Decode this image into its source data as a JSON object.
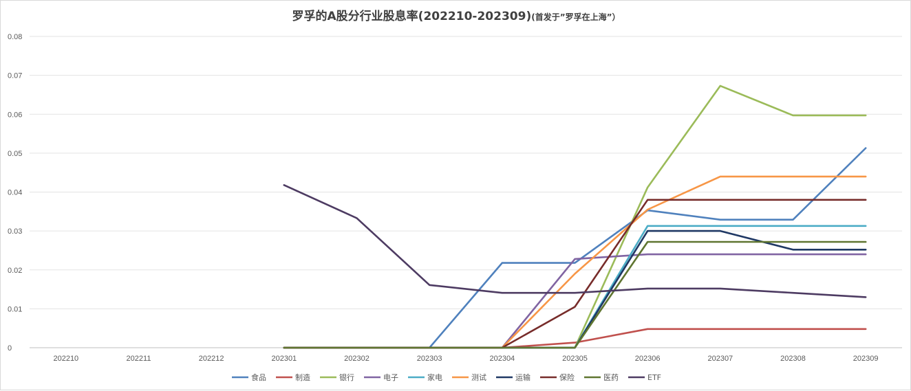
{
  "chart_data": {
    "type": "line",
    "title": "罗孚的A股分行业股息率(202210-202309)",
    "subtitle": "(首发于”罗孚在上海”）",
    "categories": [
      "202210",
      "202211",
      "202212",
      "202301",
      "202302",
      "202303",
      "202304",
      "202305",
      "202306",
      "202307",
      "202308",
      "202309"
    ],
    "ylim": [
      0,
      0.08
    ],
    "yticks": [
      "0",
      "0.01",
      "0.02",
      "0.03",
      "0.04",
      "0.05",
      "0.06",
      "0.07",
      "0.08"
    ],
    "grid": true,
    "legend_position": "bottom",
    "series": [
      {
        "name": "食品",
        "color": "#4f81bd",
        "values": [
          null,
          null,
          null,
          0,
          0,
          0,
          0.0218,
          0.0218,
          0.0353,
          0.0329,
          0.0329,
          0.0513
        ]
      },
      {
        "name": "制造",
        "color": "#c0504d",
        "values": [
          null,
          null,
          null,
          0,
          0,
          0,
          0,
          0.0013,
          0.0048,
          0.0048,
          0.0048,
          0.0048
        ]
      },
      {
        "name": "银行",
        "color": "#9bbb59",
        "values": [
          null,
          null,
          null,
          0,
          0,
          0,
          0,
          0,
          0.0412,
          0.0673,
          0.0597,
          0.0597
        ]
      },
      {
        "name": "电子",
        "color": "#8064a2",
        "values": [
          null,
          null,
          null,
          0,
          0,
          0,
          0,
          0.0228,
          0.024,
          0.024,
          0.024,
          0.024
        ]
      },
      {
        "name": "家电",
        "color": "#4bacc6",
        "values": [
          null,
          null,
          null,
          0,
          0,
          0,
          0,
          0,
          0.0313,
          0.0313,
          0.0313,
          0.0313
        ]
      },
      {
        "name": "测试",
        "color": "#f79646",
        "values": [
          null,
          null,
          null,
          0,
          0,
          0,
          0,
          0.019,
          0.0355,
          0.044,
          0.044,
          0.044
        ]
      },
      {
        "name": "运输",
        "color": "#1f3864",
        "values": [
          null,
          null,
          null,
          0,
          0,
          0,
          0,
          0,
          0.03,
          0.03,
          0.0252,
          0.0252
        ]
      },
      {
        "name": "保险",
        "color": "#772c2a",
        "values": [
          null,
          null,
          null,
          0,
          0,
          0,
          0,
          0.0105,
          0.038,
          0.038,
          0.038,
          0.038
        ]
      },
      {
        "name": "医药",
        "color": "#5f7530",
        "values": [
          null,
          null,
          null,
          0,
          0,
          0,
          0,
          0,
          0.0272,
          0.0272,
          0.0272,
          0.0272
        ]
      },
      {
        "name": "ETF",
        "color": "#4d3b62",
        "values": [
          null,
          null,
          null,
          0.0418,
          0.0333,
          0.0161,
          0.0141,
          0.0141,
          0.0152,
          0.0152,
          0.0141,
          0.013
        ]
      }
    ]
  }
}
